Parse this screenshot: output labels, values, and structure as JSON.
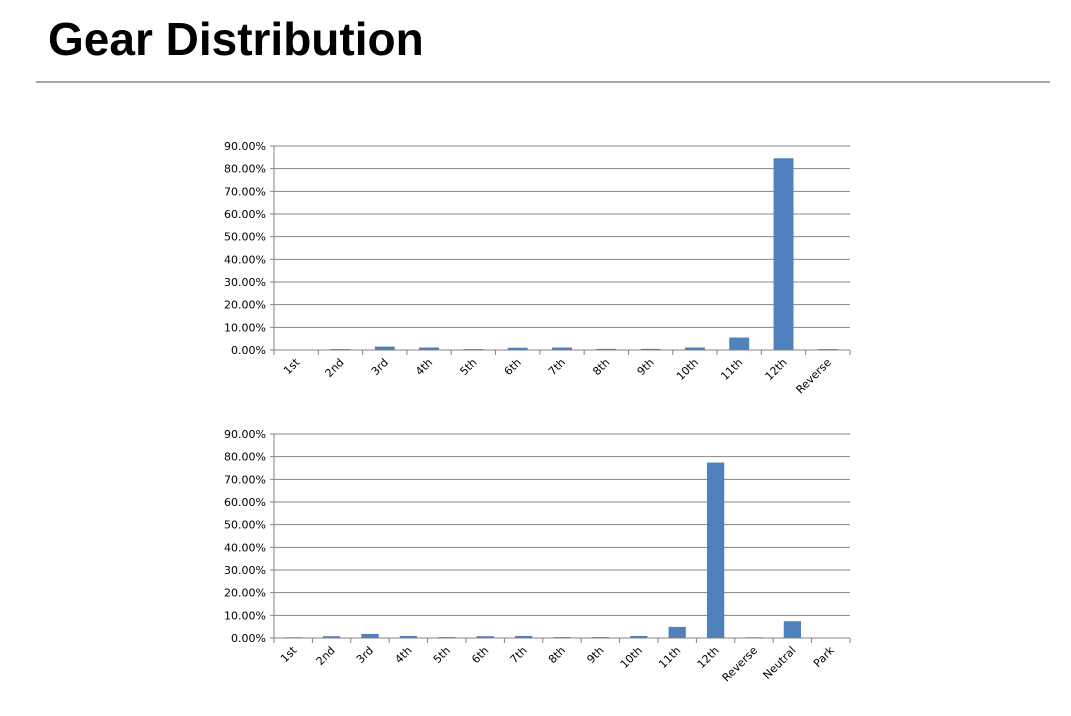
{
  "page": {
    "title": "Gear Distribution"
  },
  "colors": {
    "bar": "#4f81bd",
    "grid": "#868686",
    "axis": "#868686",
    "rule": "#a6a6a6"
  },
  "chart_data": [
    {
      "type": "bar",
      "title": "",
      "xlabel": "",
      "ylabel": "",
      "ylim": [
        0,
        90
      ],
      "yticks": [
        "0.00%",
        "10.00%",
        "20.00%",
        "30.00%",
        "40.00%",
        "50.00%",
        "60.00%",
        "70.00%",
        "80.00%",
        "90.00%"
      ],
      "grid": true,
      "legend": "none",
      "categories": [
        "1st",
        "2nd",
        "3rd",
        "4th",
        "5th",
        "6th",
        "7th",
        "8th",
        "9th",
        "10th",
        "11th",
        "12th",
        "Reverse"
      ],
      "values": [
        0.0,
        0.4,
        1.5,
        1.1,
        0.4,
        1.0,
        1.1,
        0.5,
        0.5,
        1.1,
        5.5,
        84.6,
        0.4
      ]
    },
    {
      "type": "bar",
      "title": "",
      "xlabel": "",
      "ylabel": "",
      "ylim": [
        0,
        90
      ],
      "yticks": [
        "0.00%",
        "10.00%",
        "20.00%",
        "30.00%",
        "40.00%",
        "50.00%",
        "60.00%",
        "70.00%",
        "80.00%",
        "90.00%"
      ],
      "grid": true,
      "legend": "none",
      "categories": [
        "1st",
        "2nd",
        "3rd",
        "4th",
        "5th",
        "6th",
        "7th",
        "8th",
        "9th",
        "10th",
        "11th",
        "12th",
        "Reverse",
        "Neutral",
        "Park"
      ],
      "values": [
        0.3,
        0.8,
        1.8,
        0.9,
        0.4,
        0.8,
        0.9,
        0.4,
        0.4,
        0.9,
        4.9,
        77.4,
        0.3,
        7.4,
        0.0
      ]
    }
  ]
}
